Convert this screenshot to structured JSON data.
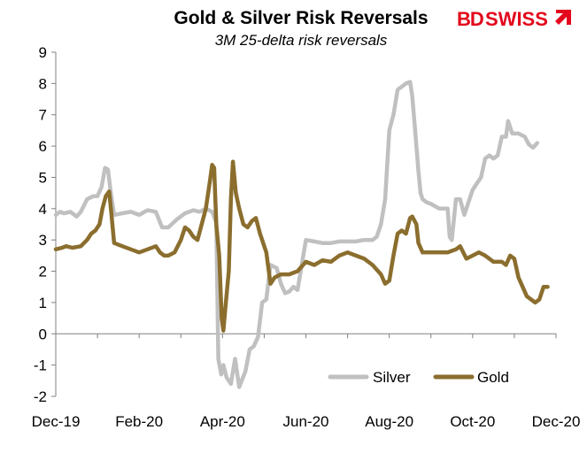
{
  "brand": {
    "bd": "BD",
    "swiss": "SWISS",
    "color": "#e3061c"
  },
  "chart_data": {
    "type": "line",
    "title": "Gold & Silver Risk Reversals",
    "subtitle": "3M 25-delta risk reversals",
    "xlabel": "",
    "ylabel": "",
    "ylim": [
      -2,
      9
    ],
    "yticks": [
      "9",
      "8",
      "7",
      "6",
      "5",
      "4",
      "3",
      "2",
      "1",
      "0",
      "-1",
      "-2"
    ],
    "xtick_labels": [
      "Dec-19",
      "Feb-20",
      "Apr-20",
      "Jun-20",
      "Aug-20",
      "Oct-20",
      "Dec-20"
    ],
    "xlim": [
      0,
      12
    ],
    "grid": false,
    "legend_placement": "bottom-right",
    "series": [
      {
        "name": "Silver",
        "color": "#c0c0c0",
        "points": [
          [
            0.0,
            3.8
          ],
          [
            0.1,
            3.9
          ],
          [
            0.2,
            3.85
          ],
          [
            0.35,
            3.9
          ],
          [
            0.5,
            3.75
          ],
          [
            0.6,
            3.9
          ],
          [
            0.75,
            4.3
          ],
          [
            0.9,
            4.4
          ],
          [
            1.0,
            4.4
          ],
          [
            1.1,
            4.7
          ],
          [
            1.18,
            5.3
          ],
          [
            1.25,
            5.25
          ],
          [
            1.32,
            4.5
          ],
          [
            1.4,
            3.8
          ],
          [
            1.6,
            3.85
          ],
          [
            1.8,
            3.9
          ],
          [
            2.0,
            3.8
          ],
          [
            2.2,
            3.95
          ],
          [
            2.4,
            3.9
          ],
          [
            2.55,
            3.4
          ],
          [
            2.7,
            3.4
          ],
          [
            2.9,
            3.65
          ],
          [
            3.1,
            3.85
          ],
          [
            3.3,
            3.95
          ],
          [
            3.45,
            3.9
          ],
          [
            3.6,
            4.0
          ],
          [
            3.75,
            3.9
          ],
          [
            3.85,
            3.55
          ],
          [
            3.9,
            -0.8
          ],
          [
            3.97,
            -1.3
          ],
          [
            4.02,
            -1.0
          ],
          [
            4.1,
            -1.4
          ],
          [
            4.2,
            -1.6
          ],
          [
            4.3,
            -0.8
          ],
          [
            4.4,
            -1.7
          ],
          [
            4.55,
            -1.2
          ],
          [
            4.65,
            -0.5
          ],
          [
            4.75,
            -0.4
          ],
          [
            4.85,
            -0.1
          ],
          [
            4.95,
            1.0
          ],
          [
            5.05,
            1.1
          ],
          [
            5.15,
            2.2
          ],
          [
            5.3,
            2.1
          ],
          [
            5.4,
            1.6
          ],
          [
            5.5,
            1.3
          ],
          [
            5.6,
            1.35
          ],
          [
            5.7,
            1.5
          ],
          [
            5.8,
            1.4
          ],
          [
            5.9,
            2.2
          ],
          [
            6.0,
            3.0
          ],
          [
            6.2,
            2.95
          ],
          [
            6.4,
            2.9
          ],
          [
            6.6,
            2.9
          ],
          [
            6.8,
            2.95
          ],
          [
            7.0,
            2.95
          ],
          [
            7.2,
            2.95
          ],
          [
            7.4,
            3.0
          ],
          [
            7.6,
            3.0
          ],
          [
            7.7,
            3.1
          ],
          [
            7.8,
            3.5
          ],
          [
            7.9,
            4.3
          ],
          [
            8.0,
            6.5
          ],
          [
            8.1,
            7.0
          ],
          [
            8.2,
            7.8
          ],
          [
            8.3,
            7.9
          ],
          [
            8.4,
            8.0
          ],
          [
            8.5,
            8.05
          ],
          [
            8.55,
            7.6
          ],
          [
            8.62,
            6.5
          ],
          [
            8.7,
            5.2
          ],
          [
            8.75,
            4.5
          ],
          [
            8.8,
            4.3
          ],
          [
            8.9,
            4.2
          ],
          [
            9.0,
            4.15
          ],
          [
            9.2,
            4.0
          ],
          [
            9.4,
            4.0
          ],
          [
            9.45,
            3.1
          ],
          [
            9.5,
            3.0
          ],
          [
            9.6,
            4.3
          ],
          [
            9.7,
            4.3
          ],
          [
            9.8,
            3.8
          ],
          [
            9.9,
            4.2
          ],
          [
            10.0,
            4.6
          ],
          [
            10.1,
            4.8
          ],
          [
            10.2,
            5.0
          ],
          [
            10.3,
            5.6
          ],
          [
            10.4,
            5.7
          ],
          [
            10.5,
            5.6
          ],
          [
            10.6,
            5.7
          ],
          [
            10.7,
            6.3
          ],
          [
            10.8,
            6.3
          ],
          [
            10.85,
            6.8
          ],
          [
            10.95,
            6.4
          ],
          [
            11.1,
            6.4
          ],
          [
            11.25,
            6.3
          ],
          [
            11.35,
            6.05
          ],
          [
            11.45,
            5.95
          ],
          [
            11.55,
            6.1
          ]
        ]
      },
      {
        "name": "Gold",
        "color": "#8b6e2e",
        "points": [
          [
            0.0,
            2.7
          ],
          [
            0.15,
            2.75
          ],
          [
            0.25,
            2.8
          ],
          [
            0.4,
            2.75
          ],
          [
            0.6,
            2.8
          ],
          [
            0.75,
            3.0
          ],
          [
            0.85,
            3.2
          ],
          [
            0.95,
            3.3
          ],
          [
            1.05,
            3.5
          ],
          [
            1.12,
            4.0
          ],
          [
            1.2,
            4.4
          ],
          [
            1.28,
            4.55
          ],
          [
            1.33,
            3.9
          ],
          [
            1.4,
            2.9
          ],
          [
            1.6,
            2.8
          ],
          [
            1.8,
            2.7
          ],
          [
            2.0,
            2.6
          ],
          [
            2.2,
            2.7
          ],
          [
            2.4,
            2.8
          ],
          [
            2.5,
            2.6
          ],
          [
            2.6,
            2.5
          ],
          [
            2.7,
            2.5
          ],
          [
            2.85,
            2.6
          ],
          [
            3.0,
            3.0
          ],
          [
            3.1,
            3.4
          ],
          [
            3.2,
            3.3
          ],
          [
            3.3,
            3.1
          ],
          [
            3.4,
            3.0
          ],
          [
            3.5,
            3.5
          ],
          [
            3.6,
            4.0
          ],
          [
            3.7,
            4.9
          ],
          [
            3.75,
            5.4
          ],
          [
            3.8,
            5.3
          ],
          [
            3.85,
            3.5
          ],
          [
            3.92,
            2.5
          ],
          [
            3.98,
            0.5
          ],
          [
            4.02,
            0.1
          ],
          [
            4.08,
            1.0
          ],
          [
            4.15,
            2.0
          ],
          [
            4.2,
            4.3
          ],
          [
            4.25,
            5.5
          ],
          [
            4.32,
            4.5
          ],
          [
            4.4,
            4.0
          ],
          [
            4.5,
            3.5
          ],
          [
            4.6,
            3.4
          ],
          [
            4.7,
            3.6
          ],
          [
            4.8,
            3.7
          ],
          [
            4.9,
            3.2
          ],
          [
            4.95,
            3.0
          ],
          [
            5.05,
            2.6
          ],
          [
            5.15,
            1.6
          ],
          [
            5.25,
            1.8
          ],
          [
            5.4,
            1.9
          ],
          [
            5.6,
            1.9
          ],
          [
            5.8,
            2.0
          ],
          [
            6.0,
            2.3
          ],
          [
            6.2,
            2.2
          ],
          [
            6.4,
            2.35
          ],
          [
            6.6,
            2.3
          ],
          [
            6.8,
            2.5
          ],
          [
            7.0,
            2.6
          ],
          [
            7.2,
            2.5
          ],
          [
            7.4,
            2.4
          ],
          [
            7.6,
            2.2
          ],
          [
            7.8,
            1.9
          ],
          [
            7.9,
            1.6
          ],
          [
            8.0,
            1.7
          ],
          [
            8.1,
            2.5
          ],
          [
            8.2,
            3.2
          ],
          [
            8.3,
            3.3
          ],
          [
            8.4,
            3.2
          ],
          [
            8.5,
            3.7
          ],
          [
            8.55,
            3.75
          ],
          [
            8.65,
            3.5
          ],
          [
            8.7,
            2.9
          ],
          [
            8.8,
            2.6
          ],
          [
            9.0,
            2.6
          ],
          [
            9.2,
            2.6
          ],
          [
            9.4,
            2.6
          ],
          [
            9.6,
            2.7
          ],
          [
            9.7,
            2.8
          ],
          [
            9.85,
            2.4
          ],
          [
            10.0,
            2.5
          ],
          [
            10.15,
            2.6
          ],
          [
            10.3,
            2.5
          ],
          [
            10.5,
            2.3
          ],
          [
            10.7,
            2.3
          ],
          [
            10.8,
            2.2
          ],
          [
            10.9,
            2.5
          ],
          [
            11.0,
            2.4
          ],
          [
            11.1,
            1.8
          ],
          [
            11.2,
            1.5
          ],
          [
            11.3,
            1.2
          ],
          [
            11.4,
            1.1
          ],
          [
            11.5,
            1.0
          ],
          [
            11.6,
            1.1
          ],
          [
            11.7,
            1.5
          ],
          [
            11.8,
            1.5
          ]
        ]
      }
    ]
  }
}
